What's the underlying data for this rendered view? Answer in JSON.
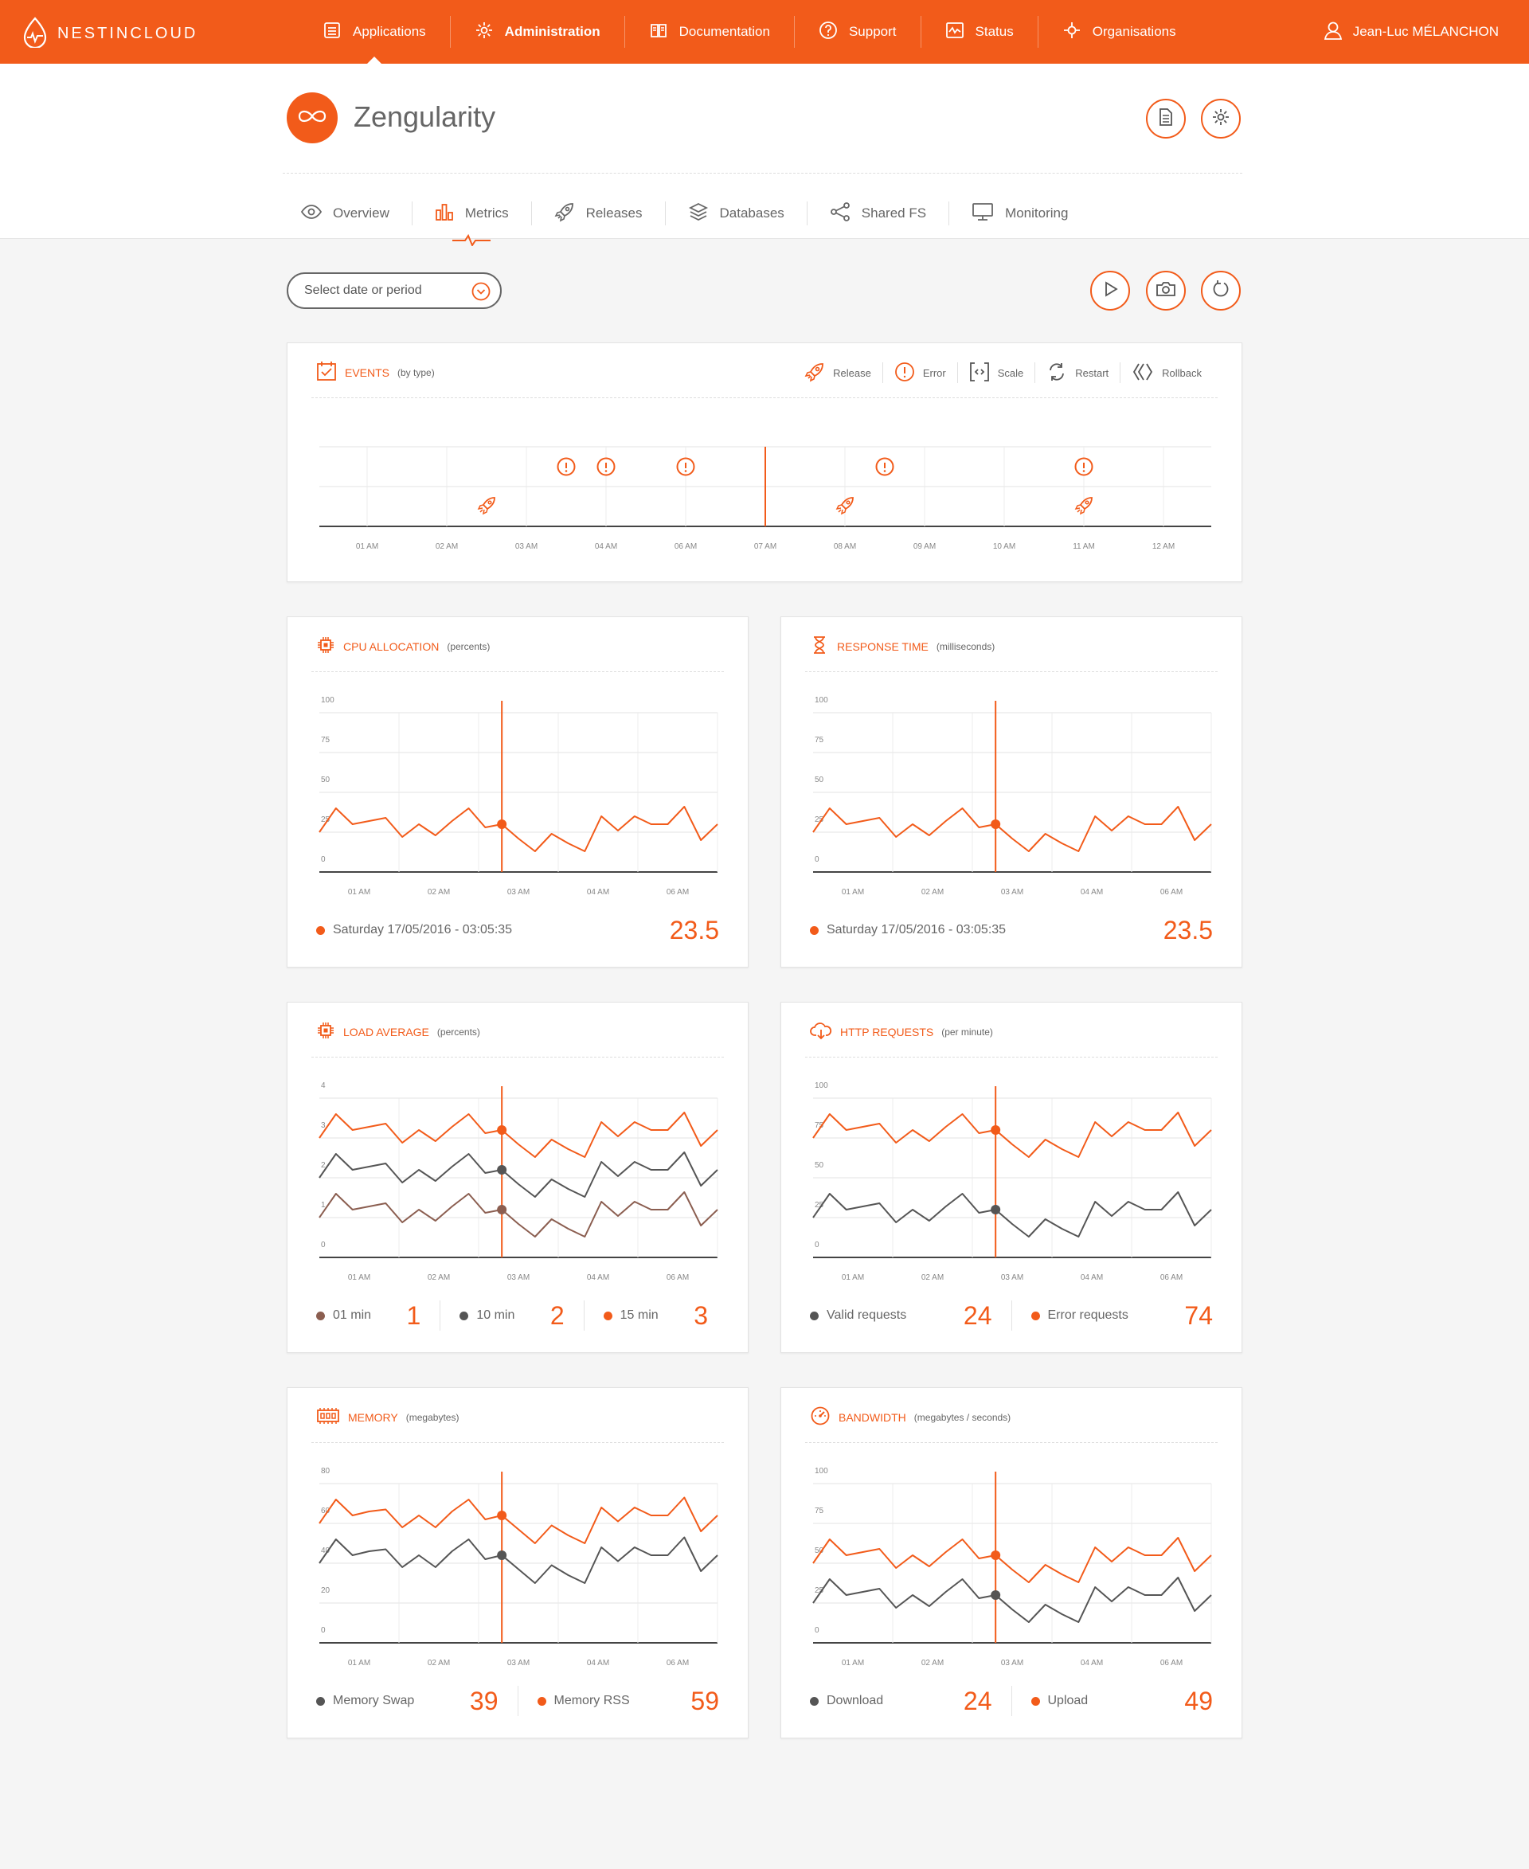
{
  "topbar": {
    "brand": "NESTINCLOUD",
    "nav": [
      {
        "label": "Applications",
        "icon": "list-icon"
      },
      {
        "label": "Administration",
        "icon": "gear-icon"
      },
      {
        "label": "Documentation",
        "icon": "book-icon"
      },
      {
        "label": "Support",
        "icon": "question-icon"
      },
      {
        "label": "Status",
        "icon": "pulse-icon"
      },
      {
        "label": "Organisations",
        "icon": "network-icon"
      }
    ],
    "active_nav": "Applications",
    "user": "Jean-Luc MÉLANCHON"
  },
  "app": {
    "name": "Zengularity"
  },
  "tabs": [
    {
      "label": "Overview",
      "icon": "eye-icon"
    },
    {
      "label": "Metrics",
      "icon": "bar-chart-icon"
    },
    {
      "label": "Releases",
      "icon": "rocket-icon"
    },
    {
      "label": "Databases",
      "icon": "layers-icon"
    },
    {
      "label": "Shared FS",
      "icon": "share-icon"
    },
    {
      "label": "Monitoring",
      "icon": "monitor-icon"
    }
  ],
  "active_tab": "Metrics",
  "period_select": {
    "placeholder": "Select date or period"
  },
  "colors": {
    "accent": "#f25b1a",
    "gray": "#555555",
    "brown": "#8b5e50",
    "grid": "#e5e5e5"
  },
  "events": {
    "title": "EVENTS",
    "subtitle": "(by type)",
    "legend": [
      "Release",
      "Error",
      "Scale",
      "Restart",
      "Rollback"
    ],
    "ticks": [
      "01 AM",
      "02 AM",
      "03 AM",
      "04 AM",
      "06 AM",
      "07 AM",
      "08 AM",
      "09 AM",
      "10 AM",
      "11 AM",
      "12 AM"
    ],
    "errors_at": [
      3.5,
      4.0,
      5.0,
      7.5,
      10.0
    ],
    "releases_at": [
      2.5,
      7.0,
      10.0
    ],
    "cursor_at": 6.0
  },
  "chart_data": [
    {
      "type": "line",
      "title": "CPU ALLOCATION",
      "unit": "(percents)",
      "ylim": [
        0,
        100
      ],
      "yticks": [
        "100",
        "75",
        "50",
        "25",
        "0"
      ],
      "xticks": [
        "01 AM",
        "02 AM",
        "03 AM",
        "04 AM",
        "06 AM"
      ],
      "cursor_index": 11,
      "series": [
        {
          "values": [
            25,
            40,
            30,
            32,
            34,
            22,
            30,
            23,
            32,
            40,
            28,
            30,
            21,
            13,
            24,
            18,
            13,
            35,
            26,
            35,
            30,
            30,
            41,
            20,
            30
          ]
        }
      ],
      "footer": {
        "date": "Saturday 17/05/2016 - 03:05:35",
        "value": "23.5"
      }
    },
    {
      "type": "line",
      "title": "RESPONSE TIME",
      "unit": "(milliseconds)",
      "ylim": [
        0,
        100
      ],
      "yticks": [
        "100",
        "75",
        "50",
        "25",
        "0"
      ],
      "xticks": [
        "01 AM",
        "02 AM",
        "03 AM",
        "04 AM",
        "06 AM"
      ],
      "cursor_index": 11,
      "series": [
        {
          "values": [
            25,
            40,
            30,
            32,
            34,
            22,
            30,
            23,
            32,
            40,
            28,
            30,
            21,
            13,
            24,
            18,
            13,
            35,
            26,
            35,
            30,
            30,
            41,
            20,
            30
          ]
        }
      ],
      "footer": {
        "date": "Saturday 17/05/2016 - 03:05:35",
        "value": "23.5"
      }
    },
    {
      "type": "line",
      "title": "LOAD AVERAGE",
      "unit": "(percents)",
      "ylim": [
        0,
        4
      ],
      "yticks": [
        "4",
        "3",
        "2",
        "1",
        "0"
      ],
      "xticks": [
        "01 AM",
        "02 AM",
        "03 AM",
        "04 AM",
        "06 AM"
      ],
      "cursor_index": 11,
      "series": [
        {
          "name": "15 min",
          "color": "#f25b1a",
          "values": [
            3.0,
            3.6,
            3.2,
            3.28,
            3.36,
            2.88,
            3.2,
            2.92,
            3.28,
            3.6,
            3.12,
            3.2,
            2.84,
            2.52,
            2.96,
            2.72,
            2.52,
            3.4,
            3.04,
            3.4,
            3.2,
            3.2,
            3.64,
            2.8,
            3.2
          ]
        },
        {
          "name": "10 min",
          "color": "#555555",
          "values": [
            2.0,
            2.6,
            2.2,
            2.28,
            2.36,
            1.88,
            2.2,
            1.92,
            2.28,
            2.6,
            2.12,
            2.2,
            1.84,
            1.52,
            1.96,
            1.72,
            1.52,
            2.4,
            2.04,
            2.4,
            2.2,
            2.2,
            2.64,
            1.8,
            2.2
          ]
        },
        {
          "name": "01 min",
          "color": "#8b5e50",
          "values": [
            1.0,
            1.6,
            1.2,
            1.28,
            1.36,
            0.88,
            1.2,
            0.92,
            1.28,
            1.6,
            1.12,
            1.2,
            0.84,
            0.52,
            0.96,
            0.72,
            0.52,
            1.4,
            1.04,
            1.4,
            1.2,
            1.2,
            1.64,
            0.8,
            1.2
          ]
        }
      ],
      "footer": [
        {
          "label": "01 min",
          "value": "1",
          "color": "#8b5e50"
        },
        {
          "label": "10 min",
          "value": "2",
          "color": "#555555"
        },
        {
          "label": "15 min",
          "value": "3",
          "color": "#f25b1a"
        }
      ]
    },
    {
      "type": "line",
      "title": "HTTP REQUESTS",
      "unit": "(per minute)",
      "ylim": [
        0,
        100
      ],
      "yticks": [
        "100",
        "75",
        "50",
        "25",
        "0"
      ],
      "xticks": [
        "01 AM",
        "02 AM",
        "03 AM",
        "04 AM",
        "06 AM"
      ],
      "cursor_index": 11,
      "series": [
        {
          "name": "Error requests",
          "color": "#f25b1a",
          "values": [
            75,
            90,
            80,
            82,
            84,
            72,
            80,
            73,
            82,
            90,
            78,
            80,
            71,
            63,
            74,
            68,
            63,
            85,
            76,
            85,
            80,
            80,
            91,
            70,
            80
          ]
        },
        {
          "name": "Valid requests",
          "color": "#555555",
          "values": [
            25,
            40,
            30,
            32,
            34,
            22,
            30,
            23,
            32,
            40,
            28,
            30,
            21,
            13,
            24,
            18,
            13,
            35,
            26,
            35,
            30,
            30,
            41,
            20,
            30
          ]
        }
      ],
      "footer": [
        {
          "label": "Valid requests",
          "value": "24",
          "color": "#555555"
        },
        {
          "label": "Error requests",
          "value": "74",
          "color": "#f25b1a"
        }
      ]
    },
    {
      "type": "line",
      "title": "MEMORY",
      "unit": "(megabytes)",
      "ylim": [
        0,
        80
      ],
      "yticks": [
        "80",
        "60",
        "40",
        "20",
        "0"
      ],
      "xticks": [
        "01 AM",
        "02 AM",
        "03 AM",
        "04 AM",
        "06 AM"
      ],
      "cursor_index": 11,
      "series": [
        {
          "name": "Memory RSS",
          "color": "#f25b1a",
          "values": [
            60,
            72,
            64,
            66,
            67,
            58,
            64,
            58,
            66,
            72,
            62,
            64,
            57,
            50,
            59,
            54,
            50,
            68,
            61,
            68,
            64,
            64,
            73,
            56,
            64
          ]
        },
        {
          "name": "Memory Swap",
          "color": "#555555",
          "values": [
            40,
            52,
            44,
            46,
            47,
            38,
            44,
            38,
            46,
            52,
            42,
            44,
            37,
            30,
            39,
            34,
            30,
            48,
            41,
            48,
            44,
            44,
            53,
            36,
            44
          ]
        }
      ],
      "footer": [
        {
          "label": "Memory Swap",
          "value": "39",
          "color": "#555555"
        },
        {
          "label": "Memory RSS",
          "value": "59",
          "color": "#f25b1a"
        }
      ]
    },
    {
      "type": "line",
      "title": "BANDWIDTH",
      "unit": "(megabytes / seconds)",
      "ylim": [
        0,
        100
      ],
      "yticks": [
        "100",
        "75",
        "50",
        "25",
        "0"
      ],
      "xticks": [
        "01 AM",
        "02 AM",
        "03 AM",
        "04 AM",
        "06 AM"
      ],
      "cursor_index": 11,
      "series": [
        {
          "name": "Upload",
          "color": "#f25b1a",
          "values": [
            50,
            65,
            55,
            57,
            59,
            47,
            55,
            48,
            57,
            65,
            53,
            55,
            46,
            38,
            49,
            43,
            38,
            60,
            51,
            60,
            55,
            55,
            66,
            45,
            55
          ]
        },
        {
          "name": "Download",
          "color": "#555555",
          "values": [
            25,
            40,
            30,
            32,
            34,
            22,
            30,
            23,
            32,
            40,
            28,
            30,
            21,
            13,
            24,
            18,
            13,
            35,
            26,
            35,
            30,
            30,
            41,
            20,
            30
          ]
        }
      ],
      "footer": [
        {
          "label": "Download",
          "value": "24",
          "color": "#555555"
        },
        {
          "label": "Upload",
          "value": "49",
          "color": "#f25b1a"
        }
      ]
    }
  ]
}
